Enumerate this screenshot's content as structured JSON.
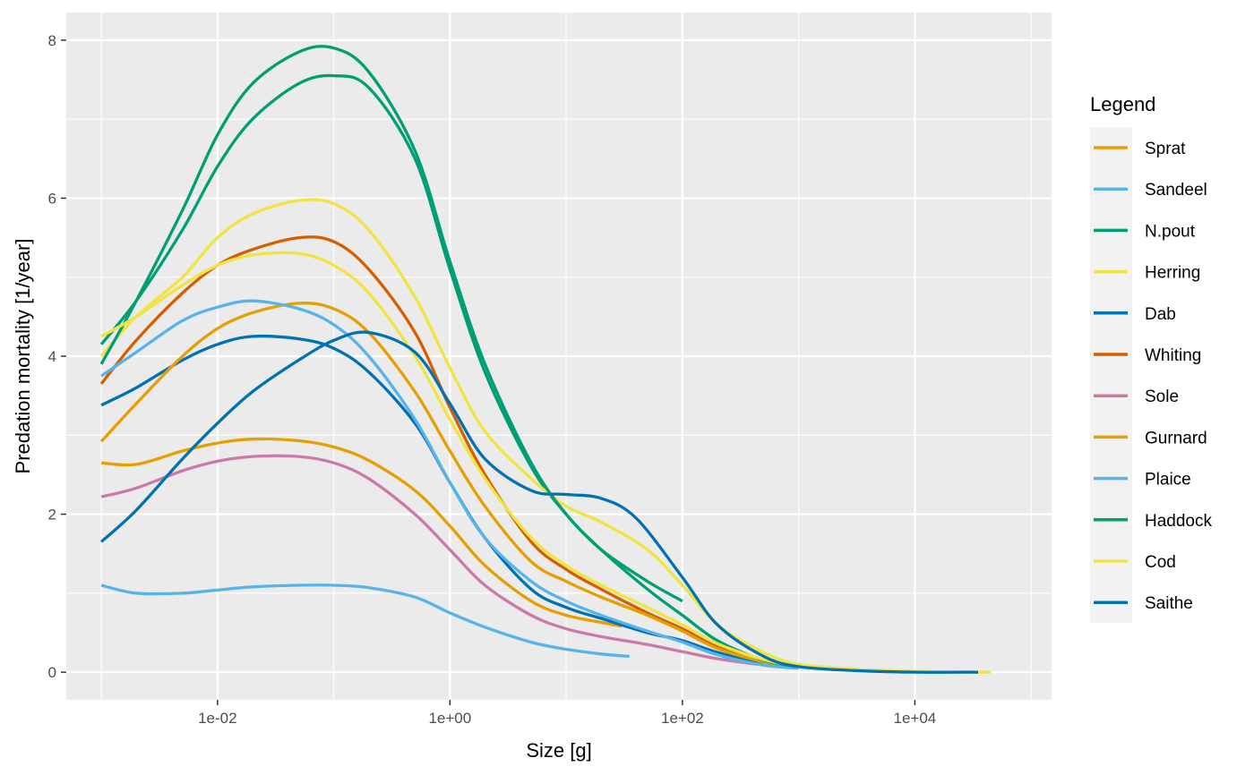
{
  "chart_data": {
    "type": "line",
    "xlabel": "Size [g]",
    "ylabel": "Predation mortality [1/year]",
    "x_scale": "log10",
    "xlim": [
      0.0005,
      150000
    ],
    "ylim": [
      -0.35,
      8.35
    ],
    "x_ticks": [
      {
        "value": 0.01,
        "label": "1e-02"
      },
      {
        "value": 1,
        "label": "1e+00"
      },
      {
        "value": 100,
        "label": "1e+02"
      },
      {
        "value": 10000,
        "label": "1e+04"
      }
    ],
    "y_ticks": [
      {
        "value": 0,
        "label": "0"
      },
      {
        "value": 2,
        "label": "2"
      },
      {
        "value": 4,
        "label": "4"
      },
      {
        "value": 6,
        "label": "6"
      },
      {
        "value": 8,
        "label": "8"
      }
    ],
    "grid": true,
    "legend": {
      "title": "Legend",
      "position": "right"
    },
    "series": [
      {
        "name": "Sprat",
        "color": "#E69F00",
        "points": [
          [
            0.001,
            2.65
          ],
          [
            0.002,
            2.63
          ],
          [
            0.005,
            2.8
          ],
          [
            0.01,
            2.9
          ],
          [
            0.02,
            2.95
          ],
          [
            0.05,
            2.93
          ],
          [
            0.1,
            2.85
          ],
          [
            0.2,
            2.68
          ],
          [
            0.5,
            2.3
          ],
          [
            1,
            1.85
          ],
          [
            2,
            1.35
          ],
          [
            5,
            0.9
          ],
          [
            10,
            0.72
          ],
          [
            20,
            0.63
          ],
          [
            30,
            0.58
          ]
        ]
      },
      {
        "name": "Sandeel",
        "color": "#56B4E9",
        "points": [
          [
            0.001,
            1.1
          ],
          [
            0.002,
            1.0
          ],
          [
            0.005,
            1.0
          ],
          [
            0.01,
            1.04
          ],
          [
            0.02,
            1.08
          ],
          [
            0.05,
            1.1
          ],
          [
            0.1,
            1.1
          ],
          [
            0.2,
            1.07
          ],
          [
            0.5,
            0.95
          ],
          [
            1,
            0.75
          ],
          [
            2,
            0.57
          ],
          [
            5,
            0.38
          ],
          [
            10,
            0.29
          ],
          [
            20,
            0.23
          ],
          [
            35,
            0.2
          ]
        ]
      },
      {
        "name": "N.pout",
        "color": "#009E73",
        "points": [
          [
            0.001,
            4.15
          ],
          [
            0.002,
            4.7
          ],
          [
            0.005,
            5.6
          ],
          [
            0.01,
            6.4
          ],
          [
            0.02,
            7.0
          ],
          [
            0.05,
            7.45
          ],
          [
            0.1,
            7.55
          ],
          [
            0.2,
            7.4
          ],
          [
            0.5,
            6.5
          ],
          [
            1,
            5.1
          ],
          [
            2,
            3.8
          ],
          [
            5,
            2.6
          ],
          [
            10,
            2.0
          ],
          [
            20,
            1.55
          ],
          [
            50,
            1.15
          ],
          [
            100,
            0.9
          ]
        ]
      },
      {
        "name": "Herring",
        "color": "#F0E442",
        "points": [
          [
            0.001,
            4.0
          ],
          [
            0.002,
            4.5
          ],
          [
            0.005,
            5.0
          ],
          [
            0.01,
            5.5
          ],
          [
            0.02,
            5.8
          ],
          [
            0.05,
            5.97
          ],
          [
            0.1,
            5.93
          ],
          [
            0.2,
            5.6
          ],
          [
            0.5,
            4.75
          ],
          [
            1,
            3.85
          ],
          [
            2,
            3.05
          ],
          [
            5,
            2.45
          ],
          [
            10,
            2.1
          ],
          [
            20,
            1.9
          ],
          [
            50,
            1.55
          ],
          [
            100,
            1.1
          ],
          [
            200,
            0.6
          ],
          [
            500,
            0.25
          ],
          [
            1000,
            0.1
          ],
          [
            3000,
            0.04
          ],
          [
            10000,
            0.01
          ],
          [
            40000,
            0.0
          ]
        ]
      },
      {
        "name": "Dab",
        "color": "#0072B2",
        "points": [
          [
            0.001,
            3.38
          ],
          [
            0.002,
            3.6
          ],
          [
            0.005,
            3.95
          ],
          [
            0.01,
            4.15
          ],
          [
            0.02,
            4.25
          ],
          [
            0.05,
            4.22
          ],
          [
            0.1,
            4.1
          ],
          [
            0.2,
            3.8
          ],
          [
            0.5,
            3.15
          ],
          [
            1,
            2.4
          ],
          [
            2,
            1.7
          ],
          [
            5,
            1.05
          ],
          [
            10,
            0.82
          ],
          [
            20,
            0.68
          ],
          [
            50,
            0.5
          ],
          [
            100,
            0.4
          ],
          [
            200,
            0.25
          ],
          [
            500,
            0.1
          ]
        ]
      },
      {
        "name": "Whiting",
        "color": "#D55E00",
        "points": [
          [
            0.001,
            3.65
          ],
          [
            0.002,
            4.2
          ],
          [
            0.005,
            4.8
          ],
          [
            0.01,
            5.15
          ],
          [
            0.02,
            5.35
          ],
          [
            0.05,
            5.5
          ],
          [
            0.1,
            5.45
          ],
          [
            0.2,
            5.1
          ],
          [
            0.5,
            4.3
          ],
          [
            1,
            3.35
          ],
          [
            2,
            2.5
          ],
          [
            5,
            1.65
          ],
          [
            10,
            1.3
          ],
          [
            20,
            1.05
          ],
          [
            50,
            0.75
          ],
          [
            100,
            0.55
          ],
          [
            200,
            0.32
          ],
          [
            500,
            0.14
          ],
          [
            1000,
            0.07
          ]
        ]
      },
      {
        "name": "Sole",
        "color": "#CC79A7",
        "points": [
          [
            0.001,
            2.22
          ],
          [
            0.002,
            2.33
          ],
          [
            0.005,
            2.55
          ],
          [
            0.01,
            2.67
          ],
          [
            0.02,
            2.73
          ],
          [
            0.05,
            2.73
          ],
          [
            0.1,
            2.65
          ],
          [
            0.2,
            2.45
          ],
          [
            0.5,
            2.0
          ],
          [
            1,
            1.55
          ],
          [
            2,
            1.1
          ],
          [
            5,
            0.72
          ],
          [
            10,
            0.55
          ],
          [
            20,
            0.45
          ],
          [
            50,
            0.35
          ],
          [
            100,
            0.26
          ],
          [
            200,
            0.17
          ],
          [
            500,
            0.09
          ],
          [
            800,
            0.06
          ]
        ]
      },
      {
        "name": "Gurnard",
        "color": "#E69F00",
        "points": [
          [
            0.001,
            2.92
          ],
          [
            0.002,
            3.4
          ],
          [
            0.005,
            4.0
          ],
          [
            0.01,
            4.35
          ],
          [
            0.02,
            4.55
          ],
          [
            0.05,
            4.67
          ],
          [
            0.1,
            4.6
          ],
          [
            0.2,
            4.3
          ],
          [
            0.5,
            3.55
          ],
          [
            1,
            2.8
          ],
          [
            2,
            2.1
          ],
          [
            5,
            1.4
          ],
          [
            10,
            1.15
          ],
          [
            20,
            0.95
          ],
          [
            50,
            0.72
          ],
          [
            100,
            0.52
          ],
          [
            200,
            0.3
          ],
          [
            500,
            0.13
          ],
          [
            1000,
            0.06
          ]
        ]
      },
      {
        "name": "Plaice",
        "color": "#56B4E9",
        "points": [
          [
            0.001,
            3.75
          ],
          [
            0.002,
            4.05
          ],
          [
            0.005,
            4.45
          ],
          [
            0.01,
            4.62
          ],
          [
            0.02,
            4.7
          ],
          [
            0.05,
            4.6
          ],
          [
            0.1,
            4.4
          ],
          [
            0.2,
            4.0
          ],
          [
            0.5,
            3.2
          ],
          [
            1,
            2.4
          ],
          [
            2,
            1.7
          ],
          [
            5,
            1.15
          ],
          [
            10,
            0.9
          ],
          [
            20,
            0.72
          ],
          [
            50,
            0.52
          ],
          [
            100,
            0.38
          ],
          [
            200,
            0.22
          ],
          [
            500,
            0.09
          ],
          [
            1000,
            0.05
          ]
        ]
      },
      {
        "name": "Haddock",
        "color": "#009E73",
        "points": [
          [
            0.001,
            3.9
          ],
          [
            0.002,
            4.7
          ],
          [
            0.005,
            5.85
          ],
          [
            0.01,
            6.8
          ],
          [
            0.02,
            7.45
          ],
          [
            0.05,
            7.85
          ],
          [
            0.1,
            7.9
          ],
          [
            0.2,
            7.6
          ],
          [
            0.5,
            6.6
          ],
          [
            1,
            5.2
          ],
          [
            2,
            3.9
          ],
          [
            5,
            2.65
          ],
          [
            10,
            2.0
          ],
          [
            20,
            1.55
          ],
          [
            50,
            1.05
          ],
          [
            100,
            0.72
          ],
          [
            200,
            0.4
          ],
          [
            500,
            0.15
          ],
          [
            1000,
            0.07
          ]
        ]
      },
      {
        "name": "Cod",
        "color": "#F0E442",
        "points": [
          [
            0.001,
            4.25
          ],
          [
            0.002,
            4.5
          ],
          [
            0.005,
            4.9
          ],
          [
            0.01,
            5.15
          ],
          [
            0.02,
            5.28
          ],
          [
            0.05,
            5.3
          ],
          [
            0.1,
            5.15
          ],
          [
            0.2,
            4.8
          ],
          [
            0.5,
            4.0
          ],
          [
            1,
            3.2
          ],
          [
            2,
            2.45
          ],
          [
            5,
            1.7
          ],
          [
            10,
            1.35
          ],
          [
            20,
            1.1
          ],
          [
            50,
            0.82
          ],
          [
            100,
            0.6
          ],
          [
            200,
            0.36
          ],
          [
            500,
            0.16
          ],
          [
            1000,
            0.08
          ],
          [
            3000,
            0.03
          ],
          [
            10000,
            0.01
          ],
          [
            30000,
            0.0
          ],
          [
            45000,
            0.0
          ]
        ]
      },
      {
        "name": "Saithe",
        "color": "#0072B2",
        "points": [
          [
            0.001,
            1.65
          ],
          [
            0.002,
            2.05
          ],
          [
            0.005,
            2.7
          ],
          [
            0.01,
            3.15
          ],
          [
            0.02,
            3.55
          ],
          [
            0.05,
            3.95
          ],
          [
            0.1,
            4.2
          ],
          [
            0.2,
            4.3
          ],
          [
            0.5,
            4.05
          ],
          [
            1,
            3.4
          ],
          [
            2,
            2.7
          ],
          [
            5,
            2.3
          ],
          [
            10,
            2.25
          ],
          [
            20,
            2.2
          ],
          [
            40,
            1.95
          ],
          [
            100,
            1.2
          ],
          [
            200,
            0.6
          ],
          [
            500,
            0.2
          ],
          [
            1000,
            0.07
          ],
          [
            3000,
            0.02
          ],
          [
            10000,
            0.0
          ],
          [
            35000,
            0.0
          ]
        ]
      }
    ]
  }
}
